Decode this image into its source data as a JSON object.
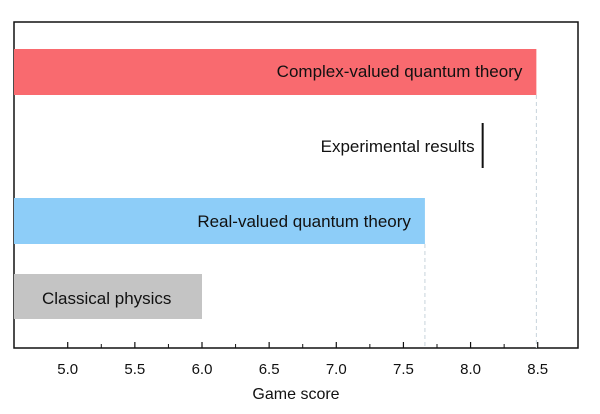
{
  "chart_data": {
    "type": "bar",
    "orientation": "horizontal",
    "xlabel": "Game score",
    "ylabel": "",
    "xlim": [
      4.6,
      8.8
    ],
    "xticks": [
      5.0,
      5.5,
      6.0,
      6.5,
      7.0,
      7.5,
      8.0,
      8.5
    ],
    "xtick_labels": [
      "5.0",
      "5.5",
      "6.0",
      "6.5",
      "7.0",
      "7.5",
      "8.0",
      "8.5"
    ],
    "grid": false,
    "categories": [
      "Complex-valued quantum theory",
      "Real-valued quantum theory",
      "Classical physics"
    ],
    "values": [
      8.49,
      7.66,
      6.0
    ],
    "colors": [
      "#f96a6f",
      "#8dcdf8",
      "#c4c4c4"
    ],
    "reference_lines": [
      8.49,
      7.66
    ],
    "annotation": {
      "label": "Experimental results",
      "value": 8.09
    }
  }
}
